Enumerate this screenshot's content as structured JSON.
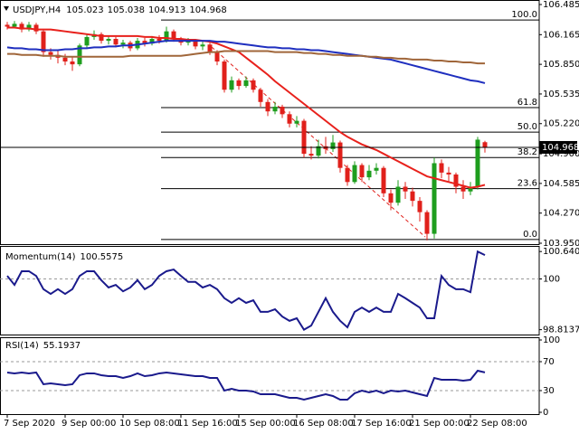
{
  "chart_data": [
    {
      "type": "candlestick",
      "title": "USDJPY,H4",
      "quote": [
        105.023,
        105.038,
        104.913,
        104.968
      ],
      "categories": [
        "7 Sep 2020",
        null,
        null,
        null,
        null,
        null,
        null,
        null,
        "9 Sep 00:00",
        null,
        null,
        null,
        null,
        null,
        null,
        null,
        "10 Sep 08:00",
        null,
        null,
        null,
        null,
        null,
        null,
        null,
        "11 Sep 16:00",
        null,
        null,
        null,
        null,
        null,
        null,
        null,
        "15 Sep 00:00",
        null,
        null,
        null,
        null,
        null,
        null,
        null,
        "16 Sep 08:00",
        null,
        null,
        null,
        null,
        null,
        null,
        null,
        "17 Sep 16:00",
        null,
        null,
        null,
        null,
        null,
        null,
        null,
        "21 Sep 00:00",
        null,
        null,
        null,
        null,
        null,
        null,
        null,
        "22 Sep 08:00",
        null,
        null
      ],
      "open": [
        106.27,
        106.25,
        106.28,
        106.22,
        106.27,
        106.2,
        105.98,
        105.95,
        105.92,
        105.88,
        105.85,
        106.05,
        106.14,
        106.17,
        106.1,
        106.12,
        106.06,
        106.08,
        106.02,
        106.1,
        106.07,
        106.12,
        106.1,
        106.2,
        106.12,
        106.08,
        106.1,
        106.04,
        106.06,
        105.98,
        105.88,
        105.58,
        105.68,
        105.62,
        105.68,
        105.58,
        105.45,
        105.35,
        105.4,
        105.32,
        105.22,
        105.25,
        104.9,
        104.88,
        104.98,
        104.95,
        105.02,
        104.75,
        104.6,
        104.78,
        104.65,
        104.72,
        104.75,
        104.48,
        104.38,
        104.55,
        104.5,
        104.4,
        104.28,
        104.05,
        104.8,
        104.7,
        104.68,
        104.55,
        104.5,
        104.55,
        105.023
      ],
      "high": [
        106.3,
        106.31,
        106.3,
        106.3,
        106.29,
        106.22,
        106.02,
        105.99,
        105.96,
        105.93,
        106.07,
        106.17,
        106.21,
        106.19,
        106.15,
        106.14,
        106.11,
        106.1,
        106.13,
        106.13,
        106.15,
        106.16,
        106.25,
        106.22,
        106.14,
        106.13,
        106.12,
        106.09,
        106.08,
        106.0,
        105.9,
        105.72,
        105.7,
        105.72,
        105.7,
        105.6,
        105.48,
        105.45,
        105.42,
        105.35,
        105.3,
        105.27,
        104.98,
        105.05,
        105.08,
        105.1,
        105.04,
        104.78,
        104.82,
        104.8,
        104.78,
        104.8,
        104.77,
        104.52,
        104.62,
        104.6,
        104.54,
        104.44,
        104.3,
        104.86,
        104.84,
        104.76,
        104.7,
        104.62,
        104.6,
        105.08,
        105.038
      ],
      "low": [
        106.22,
        106.23,
        106.19,
        106.2,
        106.17,
        105.93,
        105.9,
        105.86,
        105.84,
        105.78,
        105.83,
        106.02,
        106.11,
        106.07,
        106.06,
        106.03,
        106.02,
        105.99,
        106.0,
        106.04,
        106.05,
        106.07,
        106.08,
        106.09,
        106.05,
        106.05,
        106.01,
        106.0,
        105.95,
        105.84,
        105.55,
        105.55,
        105.58,
        105.6,
        105.55,
        105.4,
        105.3,
        105.32,
        105.28,
        105.18,
        105.18,
        104.86,
        104.84,
        104.85,
        104.9,
        104.92,
        104.7,
        104.56,
        104.58,
        104.6,
        104.62,
        104.68,
        104.44,
        104.3,
        104.35,
        104.42,
        104.34,
        104.18,
        103.98,
        104.0,
        104.64,
        104.6,
        104.48,
        104.42,
        104.46,
        104.52,
        104.913
      ],
      "close": [
        106.25,
        106.28,
        106.22,
        106.27,
        106.2,
        105.98,
        105.95,
        105.92,
        105.88,
        105.85,
        106.05,
        106.14,
        106.17,
        106.1,
        106.12,
        106.06,
        106.08,
        106.02,
        106.1,
        106.07,
        106.12,
        106.1,
        106.2,
        106.12,
        106.08,
        106.1,
        106.04,
        106.06,
        105.98,
        105.88,
        105.58,
        105.68,
        105.62,
        105.68,
        105.58,
        105.45,
        105.35,
        105.4,
        105.32,
        105.22,
        105.25,
        104.9,
        104.88,
        104.98,
        104.95,
        105.02,
        104.75,
        104.6,
        104.78,
        104.65,
        104.72,
        104.75,
        104.48,
        104.38,
        104.55,
        104.5,
        104.4,
        104.28,
        104.05,
        104.8,
        104.7,
        104.68,
        104.55,
        104.5,
        104.55,
        105.05,
        104.968
      ],
      "bull_color": "#1e9e1e",
      "bear_color": "#e0201b",
      "series": [
        {
          "color": "#e8211c",
          "values": [
            106.24,
            106.24,
            106.23,
            106.23,
            106.22,
            106.22,
            106.22,
            106.21,
            106.2,
            106.19,
            106.18,
            106.17,
            106.16,
            106.15,
            106.15,
            106.15,
            106.15,
            106.15,
            106.15,
            106.14,
            106.14,
            106.13,
            106.13,
            106.12,
            106.12,
            106.11,
            106.11,
            106.1,
            106.09,
            106.07,
            106.04,
            106.01,
            105.98,
            105.92,
            105.86,
            105.8,
            105.74,
            105.67,
            105.61,
            105.55,
            105.49,
            105.43,
            105.37,
            105.31,
            105.25,
            105.19,
            105.13,
            105.08,
            105.04,
            105.0,
            104.97,
            104.94,
            104.9,
            104.86,
            104.82,
            104.78,
            104.74,
            104.7,
            104.66,
            104.64,
            104.62,
            104.6,
            104.58,
            104.56,
            104.54,
            104.55,
            104.57
          ]
        },
        {
          "color": "#1f2fbf",
          "values": [
            106.03,
            106.02,
            106.02,
            106.01,
            106.01,
            106.0,
            106.0,
            106.0,
            106.01,
            106.01,
            106.02,
            106.02,
            106.03,
            106.03,
            106.04,
            106.04,
            106.05,
            106.05,
            106.06,
            106.07,
            106.08,
            106.09,
            106.1,
            106.1,
            106.1,
            106.1,
            106.1,
            106.1,
            106.1,
            106.09,
            106.09,
            106.08,
            106.07,
            106.06,
            106.05,
            106.04,
            106.03,
            106.03,
            106.02,
            106.02,
            106.01,
            106.01,
            106.0,
            106.0,
            105.99,
            105.98,
            105.97,
            105.96,
            105.95,
            105.94,
            105.93,
            105.92,
            105.91,
            105.9,
            105.88,
            105.86,
            105.84,
            105.82,
            105.8,
            105.78,
            105.76,
            105.74,
            105.72,
            105.7,
            105.68,
            105.67,
            105.65
          ]
        },
        {
          "color": "#a0663a",
          "values": [
            105.96,
            105.96,
            105.95,
            105.95,
            105.95,
            105.94,
            105.94,
            105.94,
            105.93,
            105.93,
            105.93,
            105.93,
            105.93,
            105.93,
            105.93,
            105.93,
            105.93,
            105.94,
            105.94,
            105.94,
            105.94,
            105.94,
            105.94,
            105.94,
            105.94,
            105.95,
            105.96,
            105.97,
            105.98,
            105.98,
            105.99,
            105.99,
            105.99,
            105.99,
            105.99,
            105.99,
            105.99,
            105.98,
            105.98,
            105.98,
            105.98,
            105.97,
            105.97,
            105.96,
            105.96,
            105.95,
            105.95,
            105.94,
            105.94,
            105.94,
            105.93,
            105.93,
            105.92,
            105.92,
            105.91,
            105.91,
            105.9,
            105.9,
            105.9,
            105.89,
            105.89,
            105.88,
            105.88,
            105.87,
            105.87,
            105.86,
            105.86
          ]
        }
      ],
      "fib_levels": [
        {
          "label": "100.0",
          "price": 106.32
        },
        {
          "label": "61.8",
          "price": 105.39
        },
        {
          "label": "50.0",
          "price": 105.13
        },
        {
          "label": "38.2",
          "price": 104.86
        },
        {
          "label": "23.6",
          "price": 104.53
        },
        {
          "label": "0.0",
          "price": 103.99
        }
      ],
      "last_price": 104.968,
      "ylim": [
        103.95,
        106.485
      ],
      "yticks": [
        106.485,
        106.165,
        {
          "value": 105.85,
          "label": "105.850"
        },
        105.535,
        {
          "value": 105.22,
          "label": "105.220"
        },
        {
          "value": 104.9,
          "label": "104.900"
        },
        104.585,
        {
          "value": 104.27,
          "label": "104.270"
        },
        {
          "value": 103.95,
          "label": "103.950"
        }
      ]
    },
    {
      "type": "line",
      "title": "Momentum(14)",
      "current": 100.5575,
      "series": [
        {
          "color": "#1a1a8c",
          "values": [
            100.07,
            99.86,
            100.18,
            100.18,
            100.07,
            99.76,
            99.65,
            99.76,
            99.65,
            99.76,
            100.07,
            100.18,
            100.18,
            99.97,
            99.8,
            99.86,
            99.71,
            99.8,
            99.97,
            99.76,
            99.86,
            100.07,
            100.18,
            100.22,
            100.07,
            99.93,
            99.93,
            99.8,
            99.86,
            99.76,
            99.55,
            99.44,
            99.55,
            99.44,
            99.5,
            99.23,
            99.23,
            99.29,
            99.12,
            99.02,
            99.08,
            98.8137,
            98.91,
            99.23,
            99.55,
            99.23,
            99.02,
            98.87,
            99.23,
            99.33,
            99.23,
            99.33,
            99.23,
            99.23,
            99.65,
            99.55,
            99.44,
            99.33,
            99.08,
            99.08,
            100.07,
            99.86,
            99.76,
            99.76,
            99.69,
            100.6406,
            100.5575
          ]
        }
      ],
      "ylim": [
        98.7,
        100.75
      ],
      "yticks": [
        100.6406,
        100,
        98.8137
      ],
      "level_lines": [
        100
      ]
    },
    {
      "type": "line",
      "title": "RSI(14)",
      "current": 55.1937,
      "series": [
        {
          "color": "#1a1a8c",
          "values": [
            55,
            53.8,
            55,
            53.8,
            55,
            38.8,
            40,
            38.8,
            37.5,
            38.8,
            51.3,
            53.8,
            53.8,
            51.3,
            50,
            50,
            47.5,
            50,
            53.8,
            50,
            51.3,
            53.8,
            55,
            53.8,
            52.5,
            51.3,
            50,
            50,
            47.5,
            47.5,
            30,
            32.5,
            30,
            30,
            28.8,
            25,
            25,
            25,
            22.5,
            20,
            20,
            17.5,
            20,
            22.5,
            25,
            22.5,
            17.5,
            17.5,
            26.3,
            30,
            27.5,
            30,
            26.3,
            30,
            28.8,
            30,
            27.5,
            25,
            22.5,
            47.5,
            45,
            45,
            45,
            43.8,
            45,
            57.5,
            55.1937
          ]
        }
      ],
      "ylim": [
        0,
        100
      ],
      "yticks": [
        100,
        70,
        30,
        0
      ],
      "level_lines": [
        70,
        30
      ]
    }
  ]
}
